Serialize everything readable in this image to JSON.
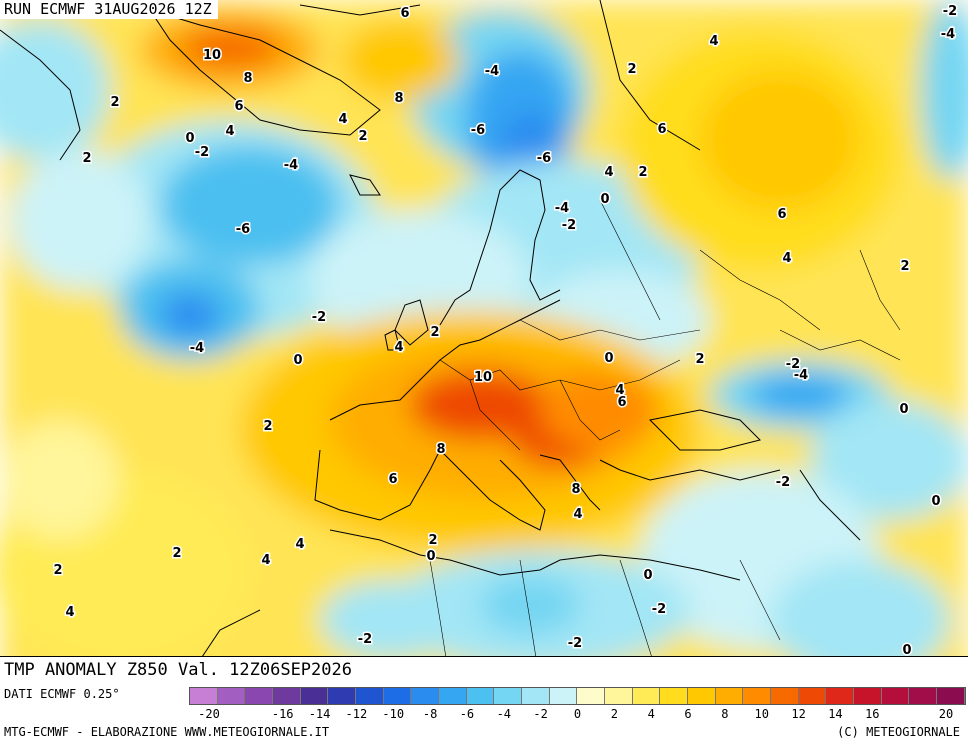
{
  "header": {
    "run": "RUN ECMWF  31AUG2026 12Z"
  },
  "title": "TMP ANOMALY Z850 Val. 12Z06SEP2026",
  "footer": {
    "dati": "DATI ECMWF 0.25°",
    "credit_left": "MTG-ECMWF - ELABORAZIONE WWW.METEOGIORNALE.IT",
    "credit_right": "(C) METEOGIORNALE"
  },
  "legend": {
    "colors": [
      "#c77fd6",
      "#a25ec0",
      "#8a47b0",
      "#6e3a9e",
      "#4a2f96",
      "#2f3bb0",
      "#1f55d0",
      "#1d6ee6",
      "#2b8cf0",
      "#35a6f2",
      "#4cc0f0",
      "#74d6f2",
      "#a3e6f5",
      "#ccf3f8",
      "#fffccc",
      "#fff59a",
      "#ffeb55",
      "#ffdd1e",
      "#ffc800",
      "#ffad00",
      "#ff8c00",
      "#f66a00",
      "#ee4a06",
      "#e0281a",
      "#c8142a",
      "#b40f3c",
      "#a00d48",
      "#8c0c50"
    ],
    "ticks": [
      "-20",
      "-18",
      "-16",
      "-14",
      "-12",
      "-10",
      "-8",
      "-6",
      "-4",
      "-2",
      "0",
      "2",
      "4",
      "6",
      "8",
      "10",
      "12",
      "14",
      "16",
      "18",
      "20"
    ],
    "tick_labels": [
      "-20",
      "-16",
      "-14",
      "-12",
      "-10",
      "-8",
      "-6",
      "-4",
      "-2",
      "0",
      "2",
      "4",
      "6",
      "8",
      "10",
      "12",
      "14",
      "16",
      "20"
    ]
  },
  "map_labels": [
    {
      "t": "6"
    },
    {
      "t": "-2"
    },
    {
      "t": "-4"
    },
    {
      "t": "10"
    },
    {
      "t": "8"
    },
    {
      "t": "6"
    },
    {
      "t": "4"
    },
    {
      "t": "0"
    },
    {
      "t": "-2"
    },
    {
      "t": "2"
    },
    {
      "t": "2"
    },
    {
      "t": "4"
    },
    {
      "t": "2"
    },
    {
      "t": "8"
    },
    {
      "t": "-4"
    },
    {
      "t": "-6"
    },
    {
      "t": "-6"
    },
    {
      "t": "4"
    },
    {
      "t": "0"
    },
    {
      "t": "2"
    },
    {
      "t": "4"
    },
    {
      "t": "2"
    },
    {
      "t": "6"
    },
    {
      "t": "-4"
    },
    {
      "t": "-6"
    },
    {
      "t": "-4"
    },
    {
      "t": "-2"
    },
    {
      "t": "6"
    },
    {
      "t": "4"
    },
    {
      "t": "2"
    },
    {
      "t": "-2"
    },
    {
      "t": "-4"
    },
    {
      "t": "0"
    },
    {
      "t": "2"
    },
    {
      "t": "4"
    },
    {
      "t": "10"
    },
    {
      "t": "0"
    },
    {
      "t": "2"
    },
    {
      "t": "-2"
    },
    {
      "t": "-4"
    },
    {
      "t": "4"
    },
    {
      "t": "6"
    },
    {
      "t": "0"
    },
    {
      "t": "2"
    },
    {
      "t": "8"
    },
    {
      "t": "6"
    },
    {
      "t": "8"
    },
    {
      "t": "4"
    },
    {
      "t": "-2"
    },
    {
      "t": "0"
    },
    {
      "t": "2"
    },
    {
      "t": "0"
    },
    {
      "t": "4"
    },
    {
      "t": "2"
    },
    {
      "t": "4"
    },
    {
      "t": "2"
    },
    {
      "t": "4"
    },
    {
      "t": "0"
    },
    {
      "t": "-2"
    },
    {
      "t": "-2"
    },
    {
      "t": "-2"
    },
    {
      "t": "0"
    }
  ]
}
